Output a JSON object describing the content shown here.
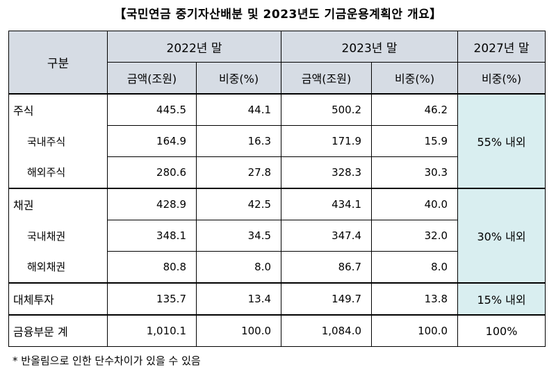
{
  "title": "【국민연금 중기자산배분 및 2023년도 기금운용계획안 개요】",
  "header": {
    "category": "구분",
    "year2022": "2022년 말",
    "year2023": "2023년 말",
    "year2027": "2027년 말",
    "amount": "금액(조원)",
    "share": "비중(%)"
  },
  "rows": {
    "stock": {
      "label": "주식",
      "a22": "445.5",
      "s22": "44.1",
      "a23": "500.2",
      "s23": "46.2"
    },
    "dom_stock": {
      "label": "국내주식",
      "a22": "164.9",
      "s22": "16.3",
      "a23": "171.9",
      "s23": "15.9"
    },
    "for_stock": {
      "label": "해외주식",
      "a22": "280.6",
      "s22": "27.8",
      "a23": "328.3",
      "s23": "30.3"
    },
    "bond": {
      "label": "채권",
      "a22": "428.9",
      "s22": "42.5",
      "a23": "434.1",
      "s23": "40.0"
    },
    "dom_bond": {
      "label": "국내채권",
      "a22": "348.1",
      "s22": "34.5",
      "a23": "347.4",
      "s23": "32.0"
    },
    "for_bond": {
      "label": "해외채권",
      "a22": "80.8",
      "s22": "8.0",
      "a23": "86.7",
      "s23": "8.0"
    },
    "alt": {
      "label": "대체투자",
      "a22": "135.7",
      "s22": "13.4",
      "a23": "149.7",
      "s23": "13.8"
    },
    "total": {
      "label": "금융부문 계",
      "a22": "1,010.1",
      "s22": "100.0",
      "a23": "1,084.0",
      "s23": "100.0"
    }
  },
  "targets": {
    "stock": "55% 내외",
    "bond": "30% 내외",
    "alt": "15% 내외",
    "total": "100%"
  },
  "note": "* 반올림으로 인한 단수차이가 있을 수 있음",
  "colors": {
    "header_bg": "#d6dce4",
    "target_bg": "#d9eef0"
  }
}
